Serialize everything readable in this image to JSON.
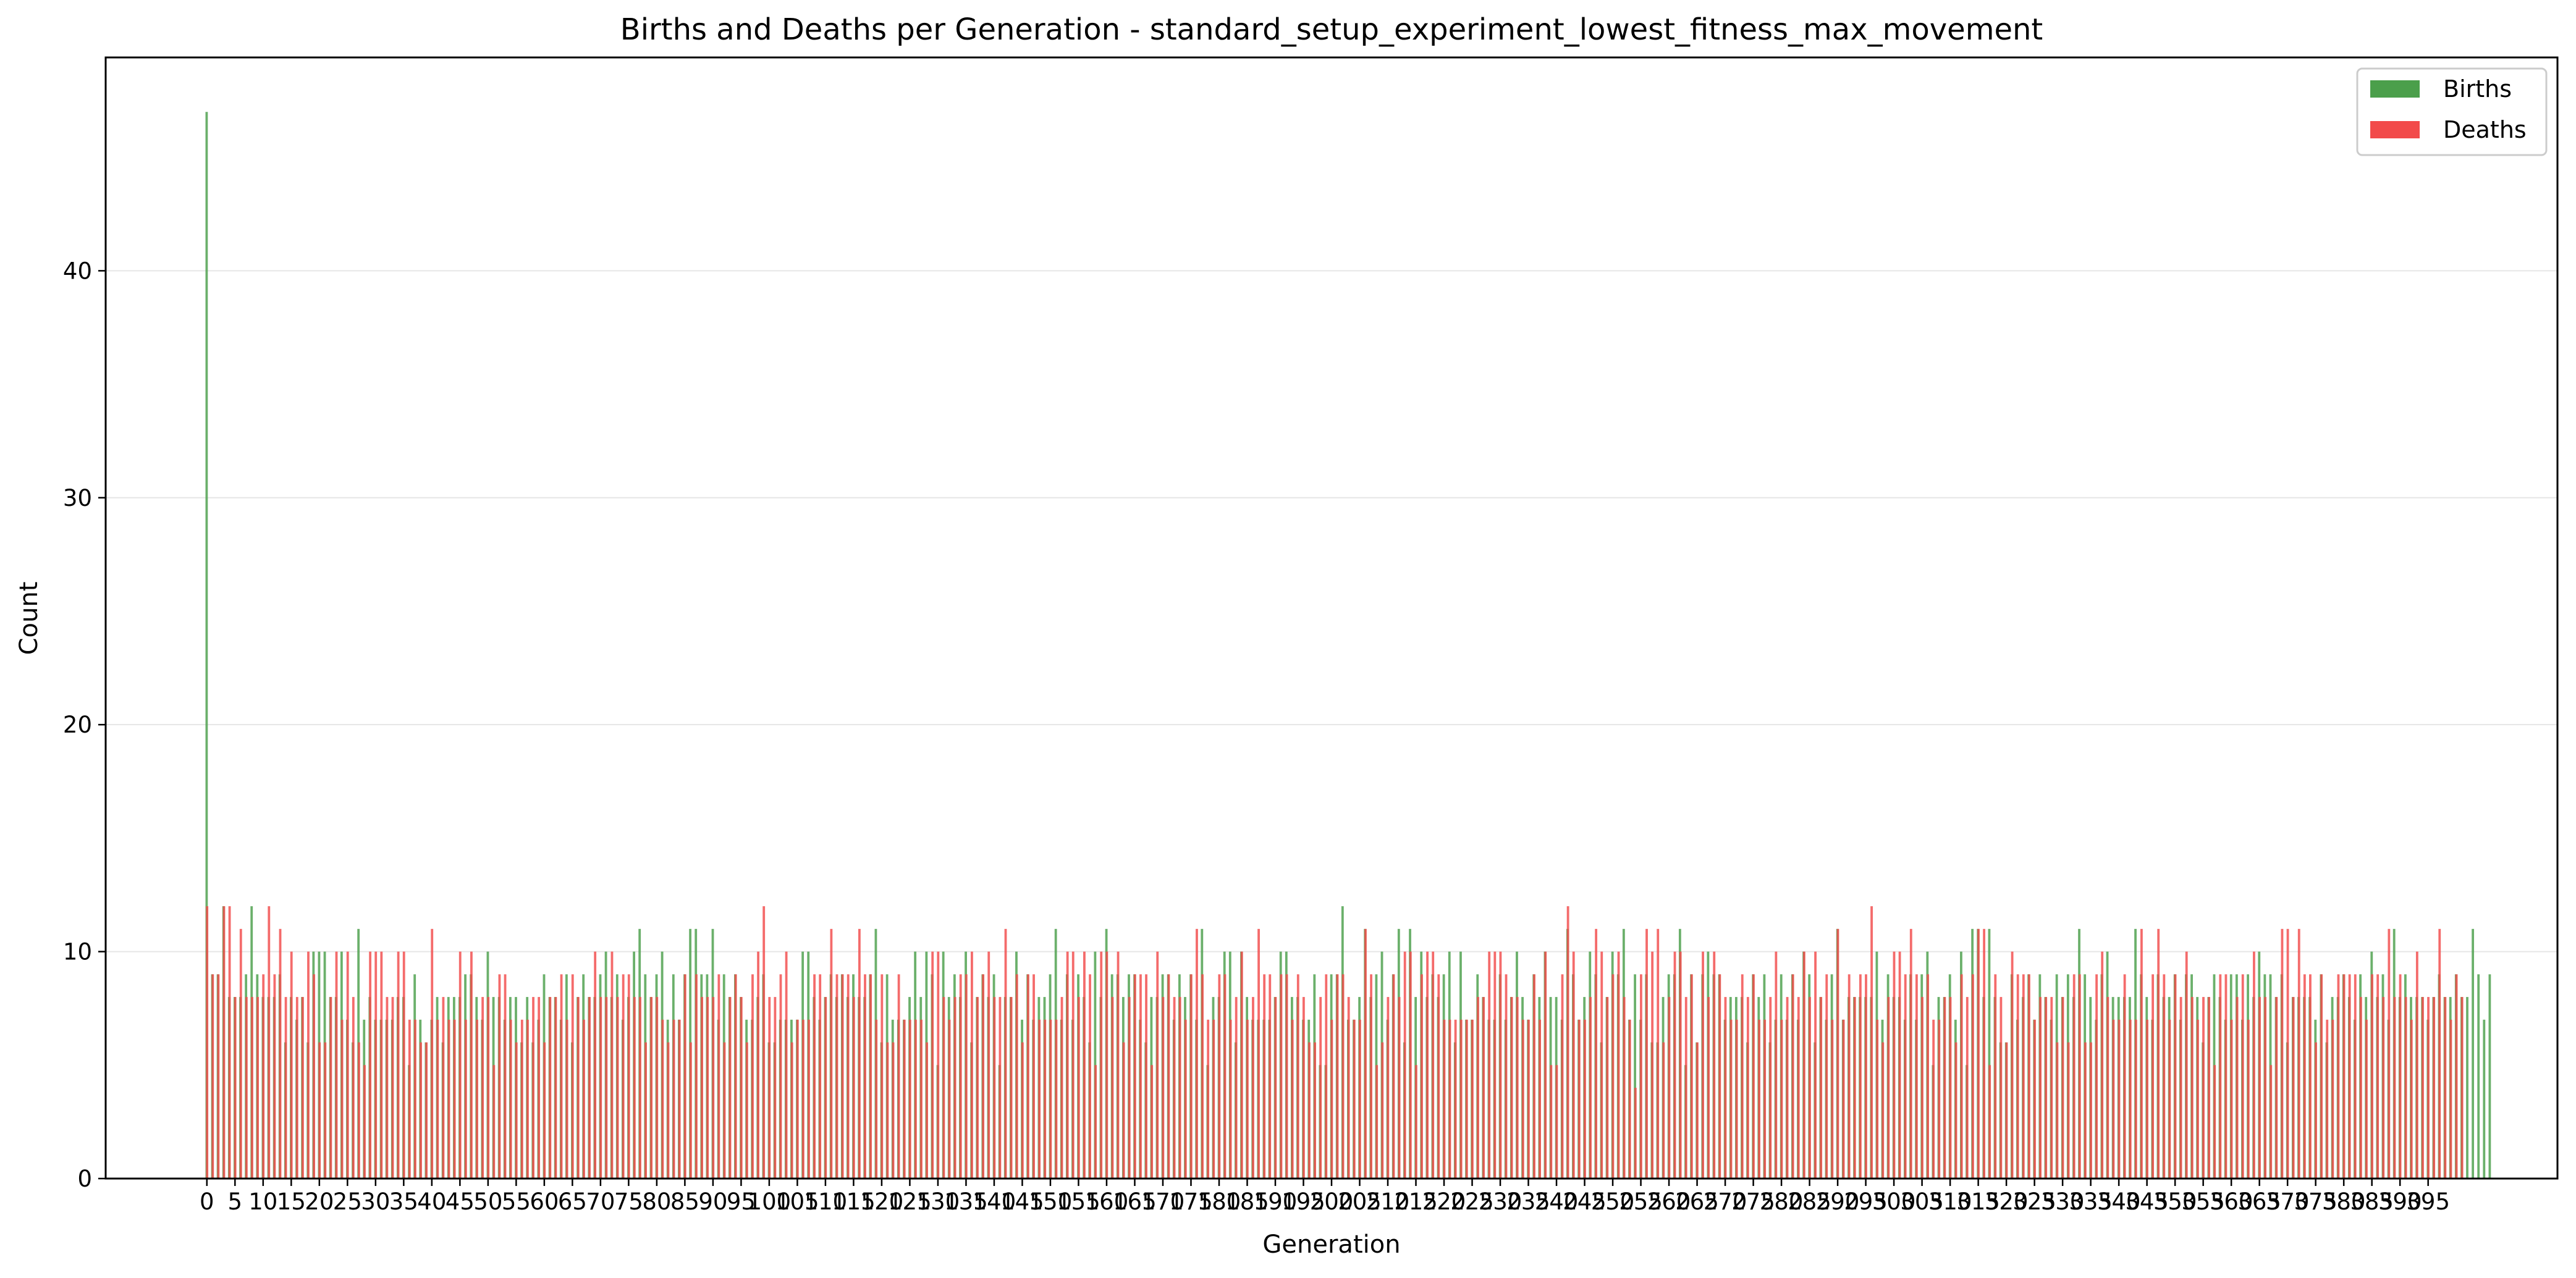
{
  "chart_data": {
    "type": "bar",
    "title": "Births and Deaths per Generation - standard_setup_experiment_lowest_fitness_max_movement",
    "xlabel": "Generation",
    "ylabel": "Count",
    "xlim": [
      -18,
      418
    ],
    "ylim": [
      0,
      49.4
    ],
    "yticks": [
      0,
      10,
      20,
      30,
      40
    ],
    "xtick_step": 5,
    "xtick_last": 395,
    "grid": "y",
    "legend_position": "top-right",
    "colors": {
      "births": "#4b9f4b",
      "deaths": "#f24a4a"
    },
    "series": [
      {
        "name": "Births",
        "color": "#4b9f4b",
        "values": [
          47,
          9,
          9,
          12,
          8,
          8,
          8,
          9,
          12,
          9,
          8,
          8,
          8,
          9,
          6,
          8,
          7,
          8,
          6,
          10,
          10,
          10,
          8,
          8,
          10,
          7,
          6,
          11,
          7,
          8,
          7,
          7,
          7,
          7,
          8,
          8,
          5,
          9,
          7,
          6,
          7,
          8,
          6,
          8,
          8,
          8,
          9,
          9,
          8,
          7,
          10,
          8,
          8,
          7,
          8,
          8,
          6,
          8,
          6,
          7,
          9,
          8,
          8,
          7,
          9,
          6,
          8,
          9,
          8,
          8,
          9,
          10,
          8,
          9,
          7,
          8,
          10,
          11,
          9,
          8,
          9,
          10,
          7,
          9,
          7,
          9,
          11,
          11,
          9,
          9,
          11,
          7,
          9,
          8,
          9,
          8,
          7,
          7,
          8,
          9,
          6,
          6,
          7,
          7,
          7,
          7,
          10,
          10,
          8,
          7,
          8,
          9,
          8,
          9,
          8,
          9,
          8,
          8,
          9,
          11,
          6,
          9,
          7,
          7,
          7,
          8,
          10,
          8,
          10,
          9,
          5,
          10,
          8,
          9,
          8,
          10,
          6,
          8,
          9,
          8,
          9,
          5,
          8,
          8,
          10,
          7,
          9,
          7,
          8,
          8,
          9,
          11,
          7,
          9,
          7,
          9,
          8,
          6,
          10,
          8,
          11,
          9,
          9,
          8,
          9,
          9,
          7,
          6,
          8,
          8,
          9,
          9,
          7,
          9,
          8,
          9,
          7,
          11,
          5,
          8,
          8,
          10,
          10,
          6,
          10,
          8,
          7,
          7,
          7,
          7,
          8,
          10,
          10,
          8,
          8,
          7,
          7,
          9,
          5,
          5,
          9,
          9,
          12,
          7,
          7,
          8,
          11,
          8,
          9,
          10,
          7,
          9,
          11,
          6,
          11,
          8,
          10,
          8,
          9,
          8,
          9,
          10,
          6,
          10,
          7,
          7,
          9,
          8,
          7,
          7,
          9,
          7,
          8,
          10,
          8,
          7,
          9,
          8,
          10,
          8,
          8,
          7,
          11,
          9,
          7,
          8,
          10,
          9,
          6,
          8,
          10,
          9,
          11,
          7,
          9,
          7,
          9,
          6,
          6,
          8,
          9,
          9,
          11,
          5,
          9,
          6,
          9,
          10,
          9,
          9,
          7,
          8,
          8,
          8,
          6,
          9,
          8,
          9,
          6,
          7,
          9,
          7,
          9,
          7,
          10,
          9,
          6,
          8,
          7,
          9,
          11,
          7,
          8,
          8,
          8,
          8,
          8,
          10,
          7,
          9,
          8,
          8,
          7,
          9,
          7,
          9,
          10,
          5,
          8,
          8,
          9,
          7,
          10,
          5,
          11,
          11,
          8,
          11,
          8,
          6,
          6,
          9,
          7,
          8,
          9,
          7,
          9,
          8,
          7,
          9,
          8,
          9,
          8,
          11,
          9,
          8,
          7,
          9,
          10,
          8,
          8,
          8,
          8,
          11,
          9,
          8,
          7,
          9,
          8,
          8,
          9,
          7,
          9,
          9,
          8,
          6,
          8,
          9,
          8,
          7,
          9,
          9,
          7,
          9,
          8,
          10,
          9,
          9,
          8,
          9,
          6,
          8,
          8,
          8,
          8,
          7,
          9,
          6,
          8,
          8,
          9,
          8,
          7,
          9,
          8,
          10,
          8,
          9,
          7,
          11,
          8,
          9,
          8,
          8,
          8,
          7,
          8,
          9,
          8,
          8,
          9,
          8,
          8,
          11,
          9,
          7,
          9
        ]
      },
      {
        "name": "Deaths",
        "color": "#f24a4a",
        "values": [
          12,
          9,
          9,
          12,
          12,
          8,
          11,
          8,
          8,
          8,
          9,
          12,
          9,
          11,
          8,
          10,
          8,
          8,
          10,
          9,
          6,
          6,
          8,
          10,
          7,
          10,
          8,
          6,
          5,
          10,
          10,
          10,
          8,
          8,
          10,
          10,
          7,
          7,
          6,
          6,
          11,
          7,
          8,
          7,
          7,
          10,
          7,
          10,
          7,
          8,
          8,
          5,
          9,
          9,
          7,
          6,
          7,
          7,
          8,
          8,
          6,
          8,
          8,
          9,
          7,
          9,
          8,
          7,
          8,
          10,
          8,
          8,
          10,
          8,
          9,
          9,
          8,
          8,
          6,
          8,
          8,
          7,
          6,
          7,
          7,
          9,
          6,
          9,
          8,
          8,
          8,
          9,
          6,
          8,
          9,
          8,
          6,
          9,
          10,
          12,
          8,
          8,
          9,
          10,
          6,
          7,
          7,
          7,
          9,
          9,
          8,
          11,
          9,
          9,
          9,
          8,
          11,
          9,
          9,
          7,
          9,
          6,
          6,
          9,
          7,
          7,
          7,
          7,
          6,
          10,
          10,
          8,
          7,
          8,
          9,
          9,
          10,
          8,
          9,
          10,
          8,
          8,
          11,
          8,
          9,
          6,
          9,
          9,
          7,
          7,
          7,
          7,
          8,
          10,
          10,
          8,
          10,
          9,
          5,
          10,
          10,
          8,
          10,
          6,
          8,
          9,
          9,
          9,
          5,
          10,
          8,
          9,
          8,
          8,
          7,
          9,
          11,
          9,
          7,
          7,
          9,
          9,
          7,
          8,
          10,
          7,
          8,
          11,
          9,
          9,
          8,
          9,
          9,
          7,
          9,
          8,
          6,
          6,
          8,
          9,
          7,
          9,
          9,
          8,
          7,
          7,
          11,
          9,
          5,
          6,
          8,
          9,
          8,
          10,
          10,
          5,
          9,
          10,
          10,
          9,
          7,
          7,
          7,
          7,
          7,
          7,
          8,
          8,
          10,
          10,
          10,
          9,
          8,
          8,
          7,
          7,
          9,
          7,
          10,
          5,
          5,
          9,
          12,
          10,
          7,
          7,
          8,
          11,
          10,
          8,
          9,
          10,
          8,
          7,
          4,
          9,
          11,
          10,
          11,
          6,
          8,
          10,
          10,
          8,
          9,
          6,
          10,
          8,
          10,
          9,
          8,
          7,
          7,
          9,
          8,
          9,
          7,
          7,
          8,
          10,
          7,
          8,
          9,
          8,
          10,
          8,
          10,
          8,
          9,
          7,
          11,
          7,
          9,
          8,
          9,
          9,
          12,
          7,
          6,
          8,
          10,
          10,
          9,
          11,
          9,
          8,
          9,
          7,
          7,
          8,
          8,
          6,
          9,
          8,
          9,
          11,
          11,
          5,
          9,
          8,
          6,
          10,
          9,
          9,
          9,
          7,
          8,
          8,
          8,
          6,
          8,
          6,
          9,
          9,
          6,
          6,
          9,
          10,
          8,
          7,
          7,
          9,
          7,
          7,
          11,
          7,
          9,
          11,
          9,
          7,
          9,
          8,
          10,
          8,
          7,
          8,
          8,
          5,
          9,
          9,
          7,
          8,
          9,
          7,
          10,
          8,
          8,
          5,
          8,
          11,
          11,
          8,
          11,
          9,
          9,
          6,
          9,
          7,
          7,
          9,
          9,
          9,
          9,
          8,
          7,
          9,
          9,
          8,
          11,
          8,
          9,
          8,
          7,
          10,
          8,
          8,
          8,
          11,
          8,
          7,
          9,
          8
        ]
      }
    ]
  }
}
